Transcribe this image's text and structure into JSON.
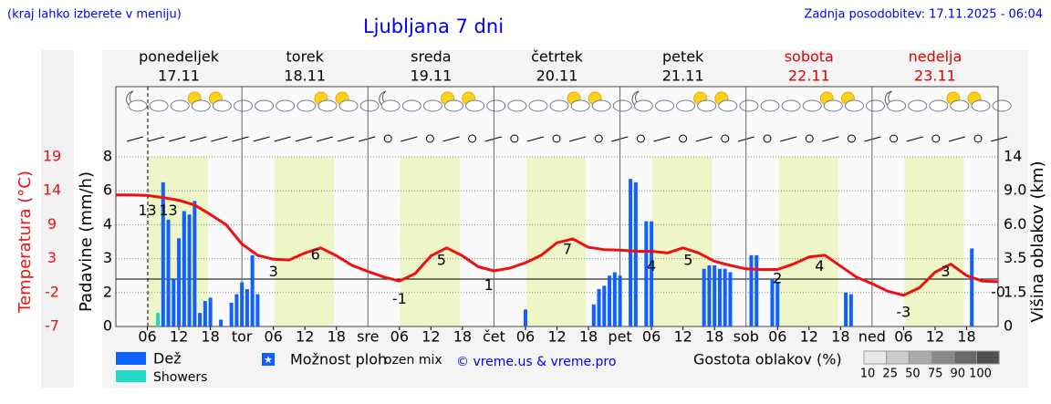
{
  "header": {
    "note": "(kraj lahko izberete v meniju)",
    "title": "Ljubljana 7 dni",
    "updated": "Zadnja posodobitev: 17.11.2025 - 06:04"
  },
  "days": [
    {
      "name": "ponedeljek",
      "date": "17.11",
      "color": "#000000"
    },
    {
      "name": "torek",
      "date": "18.11",
      "color": "#000000"
    },
    {
      "name": "sreda",
      "date": "19.11",
      "color": "#000000"
    },
    {
      "name": "četrtek",
      "date": "20.11",
      "color": "#000000"
    },
    {
      "name": "petek",
      "date": "21.11",
      "color": "#000000"
    },
    {
      "name": "sobota",
      "date": "22.11",
      "color": "#e00000"
    },
    {
      "name": "nedelja",
      "date": "23.11",
      "color": "#e00000"
    }
  ],
  "chart_data": [
    {
      "type": "bar",
      "ylabel": "Padavine (mm/h)",
      "y2label": "Višina oblakov (km)",
      "xlim": [
        0,
        168
      ],
      "xticks": [
        {
          "value": 6,
          "label": "06"
        },
        12,
        18,
        {
          "value": 24,
          "label": "tor"
        },
        {
          "value": 30,
          "label": "06"
        },
        {
          "value": 36,
          "label": "12"
        },
        {
          "value": 42,
          "label": "18"
        },
        {
          "value": 48,
          "label": "sre"
        },
        {
          "value": 54,
          "label": "06"
        },
        {
          "value": 60,
          "label": "12"
        },
        {
          "value": 66,
          "label": "18"
        },
        {
          "value": 72,
          "label": "čet"
        },
        {
          "value": 78,
          "label": "06"
        },
        {
          "value": 84,
          "label": "12"
        },
        {
          "value": 90,
          "label": "18"
        },
        {
          "value": 96,
          "label": "pet"
        },
        {
          "value": 102,
          "label": "06"
        },
        {
          "value": 108,
          "label": "12"
        },
        {
          "value": 114,
          "label": "18"
        },
        {
          "value": 120,
          "label": "sob"
        },
        {
          "value": 126,
          "label": "06"
        },
        {
          "value": 132,
          "label": "12"
        },
        {
          "value": 138,
          "label": "18"
        },
        {
          "value": 144,
          "label": "ned"
        },
        {
          "value": 150,
          "label": "06"
        },
        {
          "value": 156,
          "label": "12"
        },
        {
          "value": 162,
          "label": "18"
        }
      ],
      "ylim": [
        0,
        8
      ],
      "yticks": [
        0,
        2,
        3,
        4,
        6,
        8
      ],
      "yscale": "piecewise",
      "grid": true,
      "y2lim": [
        0,
        14
      ],
      "y2ticks": [
        0,
        1.5,
        3.5,
        {
          "value": 6,
          "label": "6.0"
        },
        {
          "value": 9,
          "label": "9.0"
        },
        14
      ],
      "y2scale": "piecewise",
      "series": [
        {
          "name": "Showers",
          "color": "#20d8c8",
          "x": [
            8,
            13
          ],
          "values": [
            0.8,
            4.7
          ]
        },
        {
          "name": "Dež",
          "color": "#1060ff",
          "x": [
            9,
            10,
            11,
            12,
            13,
            14,
            15,
            16,
            17,
            18,
            20,
            22,
            23,
            24,
            25,
            26,
            27,
            78,
            91,
            92,
            93,
            94,
            95,
            96,
            98,
            99,
            101,
            102,
            112,
            113,
            114,
            115,
            116,
            117,
            121,
            122,
            125,
            126,
            139,
            140,
            163
          ],
          "values": [
            6.5,
            4.3,
            2.4,
            3.6,
            4.8,
            4.6,
            5.4,
            0.8,
            1.5,
            1.7,
            0.4,
            1.4,
            1.9,
            2.3,
            2.1,
            3.1,
            1.9,
            1.0,
            1.3,
            2.1,
            2.2,
            2.5,
            2.6,
            2.5,
            6.7,
            6.5,
            4.2,
            4.2,
            2.7,
            2.8,
            2.8,
            2.7,
            2.7,
            2.6,
            3.1,
            3.1,
            2.4,
            2.3,
            2.0,
            1.9,
            3.3
          ]
        }
      ]
    },
    {
      "type": "line",
      "ylabel": "Temperatura (°C)",
      "color": "#ee1111",
      "xlim": [
        0,
        168
      ],
      "ylim": [
        -7,
        19
      ],
      "yticks": [
        -7,
        -2,
        3,
        9,
        14,
        19
      ],
      "yscale": "piecewise",
      "x": [
        0,
        3,
        6,
        9,
        12,
        15,
        18,
        21,
        24,
        27,
        30,
        33,
        36,
        39,
        42,
        45,
        48,
        51,
        54,
        57,
        60,
        63,
        66,
        69,
        72,
        75,
        78,
        81,
        84,
        87,
        90,
        93,
        96,
        99,
        102,
        105,
        108,
        111,
        114,
        117,
        120,
        123,
        126,
        129,
        132,
        135,
        138,
        141,
        144,
        147,
        150,
        153,
        156,
        159,
        162,
        165,
        168
      ],
      "values": [
        13.4,
        13.4,
        13.3,
        13.0,
        12.6,
        11.9,
        10.5,
        9.0,
        5.6,
        3.6,
        2.9,
        2.8,
        4.0,
        4.9,
        3.5,
        2.0,
        1.1,
        0.3,
        -0.3,
        0.8,
        3.5,
        4.9,
        3.5,
        1.8,
        1.2,
        1.6,
        2.4,
        3.6,
        5.8,
        6.5,
        5.0,
        4.6,
        4.5,
        4.3,
        4.3,
        4.0,
        4.9,
        4.0,
        2.6,
        2.0,
        1.5,
        1.4,
        1.4,
        2.2,
        3.3,
        3.6,
        1.9,
        0.3,
        -0.7,
        -1.8,
        -2.4,
        -1.3,
        1.0,
        2.2,
        0.5,
        -0.3,
        -0.4
      ],
      "labels": {
        "x": [
          6,
          10,
          30,
          38,
          54,
          62,
          71,
          86,
          102,
          109,
          126,
          134,
          150,
          158,
          168
        ],
        "values": [
          13,
          13,
          3,
          6,
          -1,
          5,
          1,
          7,
          4,
          5,
          2,
          4,
          -3,
          3,
          0
        ],
        "value_labels": [
          "13",
          "13",
          "3",
          "6",
          "-1",
          "5",
          "1",
          "7",
          "4",
          "5",
          "2",
          "4",
          "-3",
          "3",
          "-0"
        ]
      }
    }
  ],
  "legend": {
    "possibility": "Možnost ploh",
    "mix": "ozen mix",
    "credit": "© vreme.us & vreme.pro",
    "cloud_title": "Gostota oblakov (%)",
    "cloud_levels": [
      10,
      25,
      50,
      75,
      90,
      100
    ],
    "cloud_colors": [
      "#e6e6e6",
      "#cccccc",
      "#aaaaaa",
      "#888888",
      "#6a6a6a",
      "#505050"
    ]
  }
}
